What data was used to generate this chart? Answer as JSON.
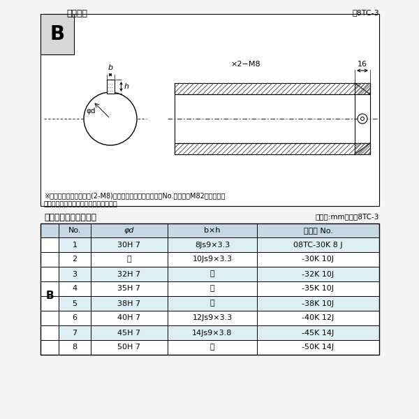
{
  "bg_color": "#f5f5f5",
  "border_color": "#000000",
  "title_top": "軸穴形状",
  "fig_label": "図8TC-3",
  "table_title": "軸穴形状コード一覧表",
  "table_unit": "（単位:mm）　表8TC-3",
  "note1": "※セットボルト用タップ(2-M8)が必要な場合は右記コードNo.の末尾にM82を付ける。",
  "note2": "（セットボルトは付属されています。）",
  "col_headers": [
    "No.",
    "φd",
    "b×h",
    "コード No."
  ],
  "row_label": "B",
  "rows": [
    [
      "1",
      "30H 7",
      "8Js9×3.3",
      "08TC-30K 8 J"
    ],
    [
      "2",
      "「",
      "10Js9×3.3",
      "-30K 10J"
    ],
    [
      "3",
      "32H 7",
      "「",
      "-32K 10J"
    ],
    [
      "4",
      "35H 7",
      "「",
      "-35K 10J"
    ],
    [
      "5",
      "38H 7",
      "「",
      "-38K 10J"
    ],
    [
      "6",
      "40H 7",
      "12Js9×3.3",
      "-40K 12J"
    ],
    [
      "7",
      "45H 7",
      "14Js9×3.8",
      "-45K 14J"
    ],
    [
      "8",
      "50H 7",
      "「",
      "-50K 14J"
    ]
  ],
  "ditto": "〃",
  "dim_label_b": "b",
  "dim_label_h": "h",
  "dim_label_phid": "φd",
  "dim_label_16": "16",
  "dim_label_m8": "×2−M8",
  "hatch_color": "#555555",
  "light_row": "#ddeef5",
  "dark_row": "#ffffff",
  "header_bg": "#c8dce8"
}
